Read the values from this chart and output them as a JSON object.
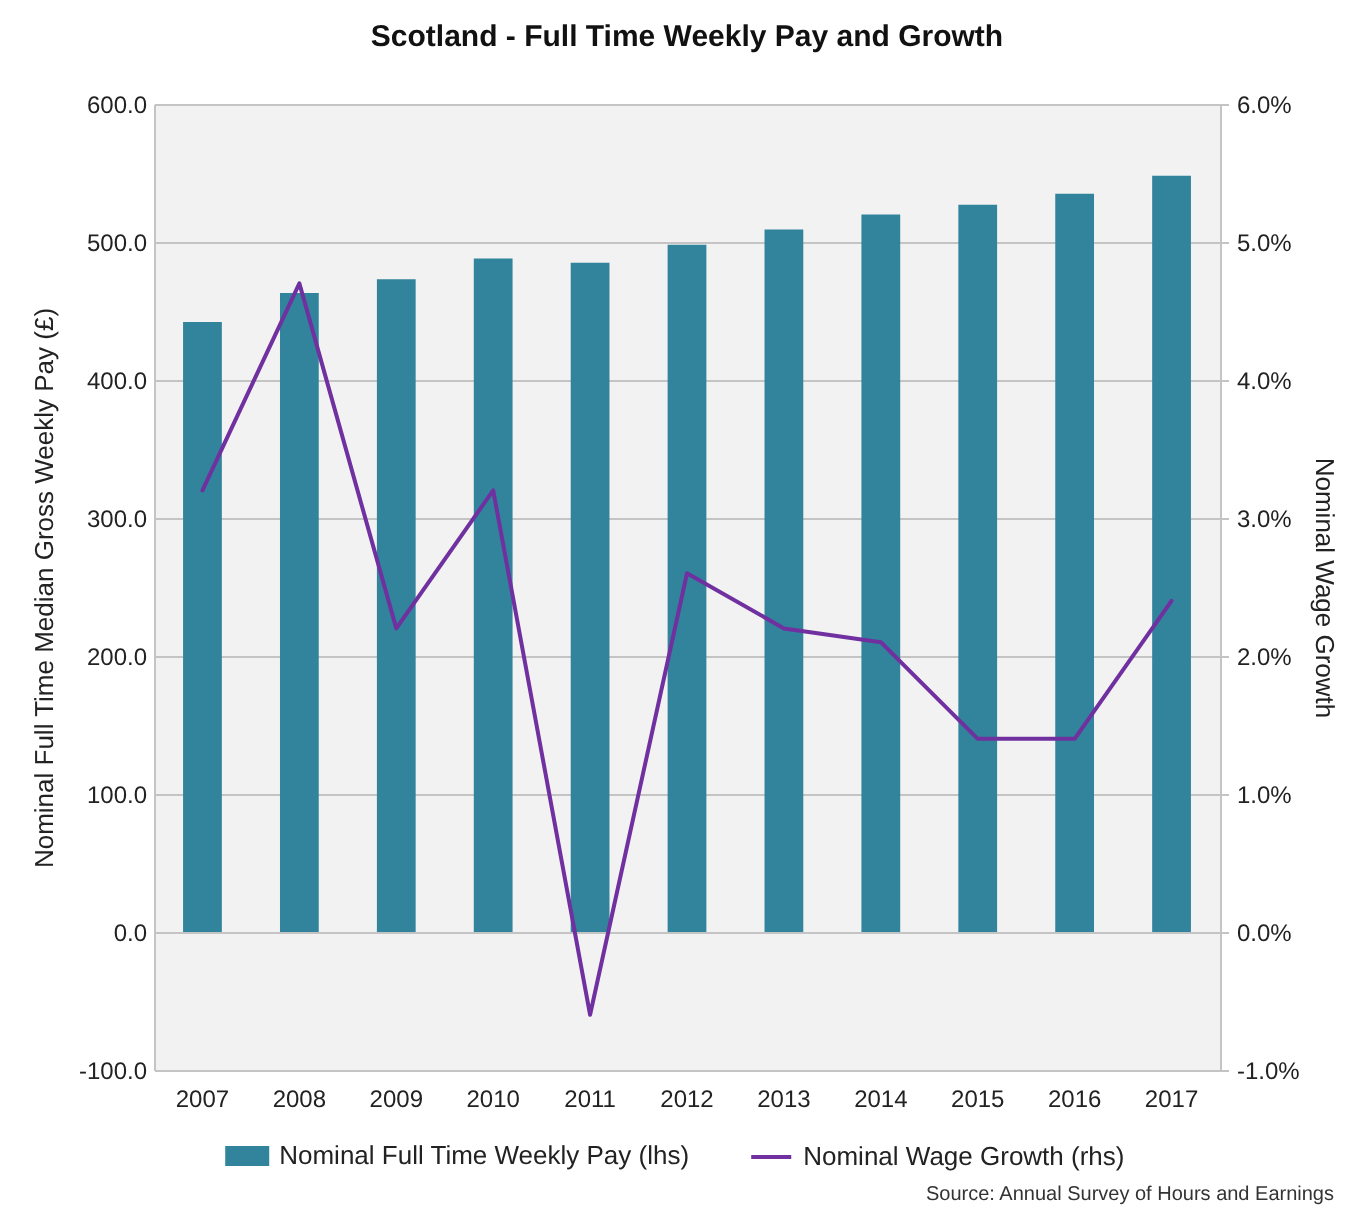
{
  "chart_data": {
    "type": "bar",
    "title": "Scotland - Full Time Weekly Pay and Growth",
    "ylabel": "Nominal Full Time Median Gross Weekly Pay (£)",
    "y2label": "Nominal Wage Growth",
    "categories": [
      "2007",
      "2008",
      "2009",
      "2010",
      "2011",
      "2012",
      "2013",
      "2014",
      "2015",
      "2016",
      "2017"
    ],
    "series": [
      {
        "name": "Nominal Full Time Weekly Pay (lhs)",
        "color": "#31849b",
        "values": [
          442,
          463,
          473,
          488,
          485,
          498,
          509,
          520,
          527,
          535,
          548
        ]
      },
      {
        "name": "Nominal Wage Growth (rhs)",
        "type": "line",
        "axis": "y2",
        "color": "#7030a0",
        "values": [
          3.2,
          4.7,
          2.2,
          3.2,
          -0.6,
          2.6,
          2.2,
          2.1,
          1.4,
          1.4,
          2.4
        ]
      }
    ],
    "ylim": [
      -100,
      600
    ],
    "yticks": [
      {
        "value": -100,
        "label": "-100.0"
      },
      {
        "value": 0,
        "label": "0.0"
      },
      {
        "value": 100,
        "label": "100.0"
      },
      {
        "value": 200,
        "label": "200.0"
      },
      {
        "value": 300,
        "label": "300.0"
      },
      {
        "value": 400,
        "label": "400.0"
      },
      {
        "value": 500,
        "label": "500.0"
      },
      {
        "value": 600,
        "label": "600.0"
      }
    ],
    "y2lim": [
      -1,
      6
    ],
    "y2ticks": [
      {
        "value": -1,
        "label": "-1.0%"
      },
      {
        "value": 0,
        "label": "0.0%"
      },
      {
        "value": 1,
        "label": "1.0%"
      },
      {
        "value": 2,
        "label": "2.0%"
      },
      {
        "value": 3,
        "label": "3.0%"
      },
      {
        "value": 4,
        "label": "4.0%"
      },
      {
        "value": 5,
        "label": "5.0%"
      },
      {
        "value": 6,
        "label": "6.0%"
      }
    ],
    "grid": "y",
    "legend": "bottom",
    "line_style": "solid",
    "annotations": [
      "Source: Annual Survey of Hours and Earnings"
    ]
  }
}
